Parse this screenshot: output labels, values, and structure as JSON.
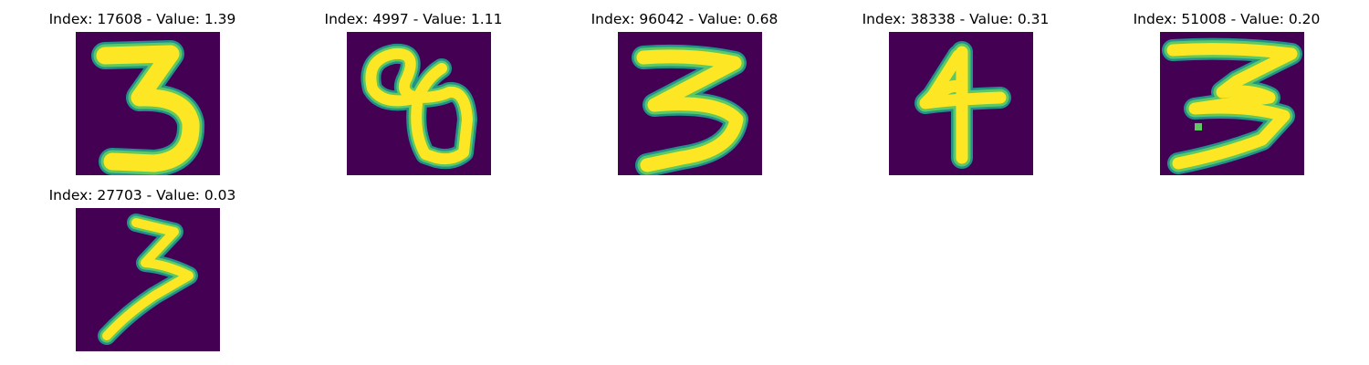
{
  "figure": {
    "colormap_background": "#440154",
    "colormap_edge": "#21918c",
    "colormap_mid": "#5ec962",
    "colormap_peak": "#fde725",
    "panels": [
      {
        "title": "Index: 17608 - Value: 1.39",
        "digit": "3"
      },
      {
        "title": "Index: 4997 - Value: 1.11",
        "digit": "8"
      },
      {
        "title": "Index: 96042 - Value: 0.68",
        "digit": "3"
      },
      {
        "title": "Index: 38338 - Value: 0.31",
        "digit": "4"
      },
      {
        "title": "Index: 51008 - Value: 0.20",
        "digit": "3"
      },
      {
        "title": "Index: 27703 - Value: 0.03",
        "digit": "3"
      }
    ]
  }
}
